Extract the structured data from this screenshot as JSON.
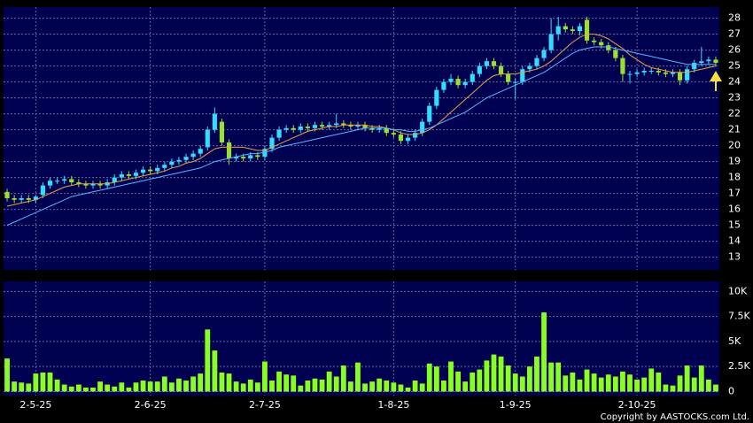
{
  "chart_data": {
    "type": "candlestick",
    "categories": [
      null,
      null,
      null,
      null,
      "2-5-25",
      null,
      null,
      null,
      null,
      null,
      null,
      null,
      null,
      null,
      null,
      null,
      null,
      null,
      null,
      null,
      "2-6-25",
      null,
      null,
      null,
      null,
      null,
      null,
      null,
      null,
      null,
      null,
      null,
      null,
      null,
      null,
      null,
      "2-7-25",
      null,
      null,
      null,
      null,
      null,
      null,
      null,
      null,
      null,
      null,
      null,
      null,
      null,
      null,
      null,
      null,
      null,
      "1-8-25",
      null,
      null,
      null,
      null,
      null,
      null,
      null,
      null,
      null,
      null,
      null,
      null,
      null,
      null,
      null,
      null,
      "1-9-25",
      null,
      null,
      null,
      null,
      null,
      null,
      null,
      null,
      null,
      null,
      null,
      null,
      null,
      null,
      null,
      null,
      "2-10-25",
      null,
      null,
      null,
      null,
      null,
      null,
      null,
      null,
      null,
      null,
      null
    ],
    "open": [
      17.1,
      16.7,
      16.6,
      16.7,
      16.6,
      16.9,
      17.5,
      17.8,
      17.8,
      17.9,
      17.7,
      17.6,
      17.5,
      17.6,
      17.5,
      17.7,
      18.0,
      18.2,
      18.1,
      18.3,
      18.5,
      18.4,
      18.6,
      18.8,
      19.0,
      19.1,
      19.3,
      19.5,
      19.9,
      21.0,
      21.5,
      20.2,
      19.2,
      19.3,
      19.2,
      19.4,
      19.3,
      19.8,
      20.5,
      21.0,
      21.1,
      21.0,
      21.2,
      21.1,
      21.3,
      21.2,
      21.3,
      21.4,
      21.3,
      21.2,
      21.3,
      21.1,
      21.0,
      21.1,
      20.8,
      20.7,
      20.3,
      20.5,
      20.8,
      21.5,
      22.5,
      23.5,
      24.0,
      24.2,
      23.8,
      24.0,
      24.5,
      25.0,
      25.3,
      25.0,
      24.5,
      24.0,
      24.0,
      24.8,
      25.0,
      25.5,
      26.0,
      27.0,
      27.5,
      27.3,
      27.2,
      27.9,
      26.6,
      26.5,
      26.3,
      26.0,
      25.5,
      24.5,
      24.5,
      24.6,
      24.7,
      24.7,
      24.6,
      24.5,
      24.6,
      24.1,
      24.8,
      25.2,
      25.3,
      25.4
    ],
    "high": [
      17.3,
      16.9,
      16.9,
      16.9,
      16.9,
      17.7,
      18.0,
      18.0,
      18.1,
      18.1,
      17.9,
      17.8,
      17.8,
      17.8,
      17.9,
      18.2,
      18.4,
      18.4,
      18.5,
      18.7,
      18.7,
      18.8,
      19.0,
      19.2,
      19.3,
      19.5,
      19.7,
      20.0,
      21.2,
      22.4,
      21.7,
      20.4,
      19.5,
      19.5,
      19.6,
      19.6,
      20.0,
      20.7,
      21.2,
      21.3,
      21.3,
      21.4,
      21.4,
      21.5,
      21.5,
      21.5,
      22.0,
      21.6,
      21.5,
      21.5,
      21.5,
      21.3,
      21.3,
      21.3,
      21.0,
      20.9,
      20.7,
      21.0,
      21.7,
      22.7,
      23.7,
      24.2,
      24.5,
      24.4,
      24.2,
      24.7,
      25.2,
      25.5,
      25.5,
      25.2,
      24.7,
      24.2,
      25.0,
      25.2,
      25.7,
      26.2,
      28.0,
      28.1,
      27.7,
      27.5,
      27.7,
      28.1,
      26.8,
      26.7,
      26.5,
      26.2,
      25.7,
      24.7,
      24.8,
      24.9,
      24.9,
      24.9,
      24.8,
      24.8,
      24.8,
      25.0,
      25.4,
      26.2,
      25.6,
      25.6
    ],
    "low": [
      16.5,
      16.4,
      16.4,
      16.4,
      16.4,
      16.7,
      17.3,
      17.6,
      17.6,
      17.5,
      17.4,
      17.3,
      17.3,
      17.3,
      17.3,
      17.5,
      17.8,
      17.9,
      17.9,
      18.1,
      18.2,
      18.2,
      18.4,
      18.6,
      18.8,
      18.9,
      19.1,
      19.3,
      19.7,
      20.8,
      20.0,
      18.8,
      19.0,
      19.0,
      19.0,
      19.1,
      19.1,
      19.6,
      20.3,
      20.8,
      20.8,
      20.8,
      20.9,
      20.9,
      21.0,
      21.0,
      21.1,
      21.1,
      21.0,
      21.0,
      20.9,
      20.8,
      20.8,
      20.6,
      20.5,
      20.1,
      20.1,
      20.3,
      20.6,
      21.3,
      22.3,
      23.3,
      23.8,
      23.6,
      23.6,
      23.8,
      24.3,
      24.8,
      24.8,
      24.3,
      23.8,
      22.9,
      23.8,
      24.6,
      24.8,
      25.3,
      25.8,
      26.6,
      27.1,
      27.0,
      26.9,
      26.4,
      26.3,
      26.1,
      25.8,
      25.3,
      24.0,
      23.9,
      24.3,
      24.4,
      24.5,
      24.4,
      24.3,
      24.3,
      23.8,
      23.9,
      24.6,
      25.0,
      25.1,
      25.0
    ],
    "close": [
      16.7,
      16.6,
      16.7,
      16.6,
      16.8,
      17.5,
      17.8,
      17.8,
      17.9,
      17.7,
      17.6,
      17.5,
      17.6,
      17.5,
      17.7,
      18.0,
      18.2,
      18.1,
      18.3,
      18.5,
      18.4,
      18.6,
      18.8,
      19.0,
      19.1,
      19.3,
      19.5,
      19.8,
      21.0,
      22.0,
      20.2,
      19.2,
      19.3,
      19.2,
      19.4,
      19.3,
      19.8,
      20.5,
      21.0,
      21.1,
      21.0,
      21.2,
      21.1,
      21.3,
      21.2,
      21.3,
      21.4,
      21.3,
      21.2,
      21.3,
      21.1,
      21.0,
      21.1,
      20.8,
      20.7,
      20.3,
      20.5,
      20.8,
      21.5,
      22.5,
      23.5,
      24.0,
      24.2,
      23.8,
      24.0,
      24.5,
      25.0,
      25.3,
      25.0,
      24.5,
      24.0,
      24.0,
      24.8,
      25.0,
      25.5,
      26.0,
      27.0,
      27.5,
      27.3,
      27.2,
      27.5,
      26.6,
      26.5,
      26.3,
      26.0,
      25.5,
      24.5,
      24.5,
      24.6,
      24.7,
      24.7,
      24.6,
      24.5,
      24.6,
      24.1,
      24.8,
      25.2,
      25.3,
      25.4,
      25.2
    ],
    "up_color": "#33ddff",
    "down_color": "#99e033",
    "lines": [
      {
        "color": "#f0a040",
        "values": [
          16.2,
          16.3,
          16.4,
          16.5,
          16.6,
          16.8,
          17.0,
          17.2,
          17.4,
          17.5,
          17.6,
          17.6,
          17.6,
          17.6,
          17.6,
          17.7,
          17.8,
          17.9,
          18.0,
          18.1,
          18.2,
          18.3,
          18.4,
          18.6,
          18.7,
          18.9,
          19.0,
          19.2,
          19.5,
          19.8,
          19.9,
          19.9,
          19.9,
          19.9,
          19.8,
          19.7,
          19.7,
          19.9,
          20.1,
          20.3,
          20.5,
          20.7,
          20.9,
          21.0,
          21.1,
          21.2,
          21.2,
          21.3,
          21.3,
          21.3,
          21.3,
          21.2,
          21.2,
          21.1,
          21.0,
          20.8,
          20.7,
          20.7,
          20.8,
          21.0,
          21.3,
          21.7,
          22.1,
          22.5,
          22.9,
          23.3,
          23.7,
          24.1,
          24.4,
          24.5,
          24.5,
          24.5,
          24.6,
          24.7,
          24.8,
          25.0,
          25.3,
          25.7,
          26.1,
          26.5,
          26.8,
          27.0,
          27.0,
          26.9,
          26.7,
          26.4,
          26.1,
          25.7,
          25.4,
          25.1,
          24.9,
          24.8,
          24.7,
          24.6,
          24.6,
          24.6,
          24.7,
          24.8,
          24.9,
          25.0
        ]
      },
      {
        "color": "#55b8ff",
        "values": [
          15.0,
          15.2,
          15.4,
          15.6,
          15.8,
          16.0,
          16.2,
          16.4,
          16.6,
          16.8,
          16.9,
          17.0,
          17.1,
          17.2,
          17.3,
          17.4,
          17.5,
          17.6,
          17.7,
          17.8,
          17.9,
          18.0,
          18.1,
          18.2,
          18.3,
          18.4,
          18.5,
          18.6,
          18.8,
          19.0,
          19.1,
          19.2,
          19.3,
          19.4,
          19.5,
          19.5,
          19.6,
          19.7,
          19.9,
          20.0,
          20.1,
          20.2,
          20.3,
          20.4,
          20.5,
          20.6,
          20.7,
          20.8,
          20.9,
          21.0,
          21.1,
          21.1,
          21.1,
          21.1,
          21.0,
          21.0,
          20.9,
          20.9,
          21.0,
          21.1,
          21.3,
          21.5,
          21.7,
          21.9,
          22.1,
          22.4,
          22.7,
          23.0,
          23.2,
          23.4,
          23.6,
          23.8,
          24.0,
          24.2,
          24.4,
          24.6,
          24.9,
          25.2,
          25.5,
          25.8,
          26.0,
          26.1,
          26.2,
          26.2,
          26.2,
          26.1,
          26.0,
          25.9,
          25.8,
          25.7,
          25.6,
          25.5,
          25.4,
          25.3,
          25.2,
          25.1,
          25.1,
          25.1,
          25.1,
          25.1
        ]
      }
    ],
    "ylim": [
      12.2,
      28.7
    ],
    "yticks": [
      13,
      14,
      15,
      16,
      17,
      18,
      19,
      20,
      21,
      22,
      23,
      24,
      25,
      26,
      27,
      28
    ],
    "grid": true,
    "volume": {
      "color": "#88ff22",
      "values": [
        3300,
        1000,
        900,
        800,
        1800,
        1900,
        1900,
        1200,
        700,
        500,
        700,
        400,
        400,
        1000,
        700,
        500,
        900,
        400,
        900,
        1100,
        1000,
        1000,
        1500,
        900,
        1300,
        1100,
        1500,
        1800,
        6200,
        4100,
        1900,
        1800,
        1000,
        800,
        1200,
        900,
        3000,
        1100,
        2000,
        1700,
        1600,
        600,
        1100,
        1300,
        1200,
        2000,
        1500,
        2600,
        1000,
        2900,
        800,
        1000,
        1300,
        1100,
        900,
        700,
        400,
        1100,
        800,
        2800,
        2500,
        1100,
        3000,
        2000,
        1000,
        1900,
        2200,
        3100,
        3700,
        3500,
        2600,
        1800,
        1500,
        2500,
        3500,
        7900,
        2900,
        2900,
        1600,
        1900,
        1200,
        2200,
        1800,
        1400,
        1700,
        1500,
        2000,
        1700,
        1200,
        1400,
        2300,
        1900,
        700,
        600,
        1600,
        2600,
        1400,
        2600,
        1200,
        700
      ],
      "ylim": [
        -400,
        11000
      ],
      "yticks": [
        0,
        {
          "value": 2500,
          "label": "2.5K"
        },
        {
          "value": 5000,
          "label": "5K"
        },
        {
          "value": 7500,
          "label": "7.5K"
        },
        {
          "value": 10000,
          "label": "10K"
        }
      ]
    },
    "copyright": "Copyright by AASTOCKS.com Ltd."
  }
}
